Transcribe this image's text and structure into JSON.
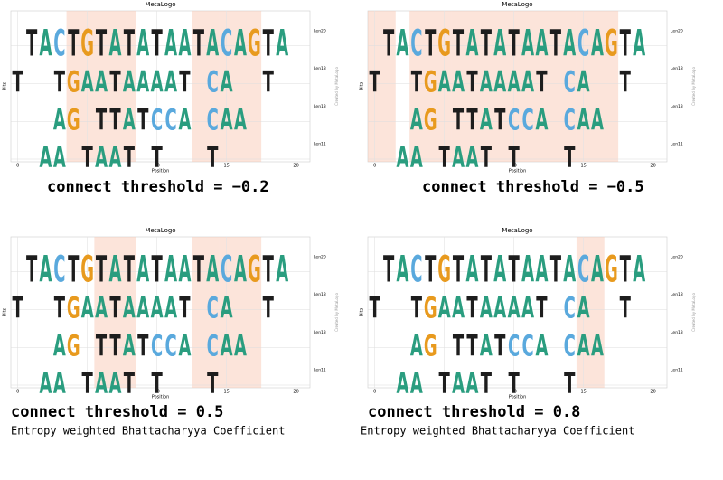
{
  "logo": {
    "rows": [
      {
        "label": "Len20",
        "letters": [
          null,
          "T",
          "A",
          "C",
          "T",
          "G",
          "T",
          "A",
          "T",
          "A",
          "T",
          "A",
          "A",
          "T",
          "A",
          "C",
          "A",
          "G",
          "T",
          "A",
          null
        ]
      },
      {
        "label": "Len18",
        "letters": [
          "T",
          null,
          null,
          "T",
          "G",
          "A",
          "A",
          "T",
          "A",
          "A",
          "A",
          "A",
          "T",
          null,
          "C",
          "A",
          null,
          null,
          "T",
          null,
          null
        ]
      },
      {
        "label": "Len13",
        "letters": [
          null,
          null,
          null,
          "A",
          "G",
          null,
          "T",
          "T",
          "A",
          "T",
          "C",
          "C",
          "A",
          null,
          "C",
          "A",
          "A",
          null,
          null,
          null,
          null
        ]
      },
      {
        "label": "Len11",
        "letters": [
          null,
          null,
          "A",
          "A",
          null,
          "T",
          "A",
          "A",
          "T",
          null,
          "T",
          null,
          null,
          null,
          "T",
          null,
          null,
          null,
          null,
          null,
          null
        ]
      }
    ],
    "x_label": "Position",
    "y_label": "Bits",
    "credit": "Created by MetaLogo",
    "xticks": [
      0,
      5,
      10,
      15,
      20
    ],
    "xlim": [
      -0.5,
      21
    ]
  },
  "panels": [
    {
      "title": "MetaLogo",
      "caption": "connect threshold = −0.2"
    },
    {
      "title": "MetaLogo",
      "caption": "connect threshold = −0.5"
    },
    {
      "title": "MetaLogo",
      "caption": "connect threshold = 0.5",
      "subcaption": "Entropy weighted Bhattacharyya Coefficient"
    },
    {
      "title": "MetaLogo",
      "caption": "connect threshold = 0.8",
      "subcaption": "Entropy weighted Bhattacharyya Coefficient"
    }
  ]
}
